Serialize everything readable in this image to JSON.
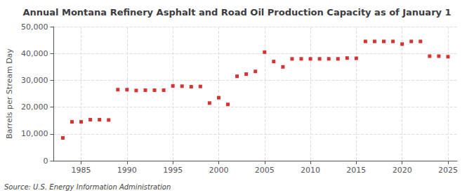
{
  "chart_data": {
    "type": "scatter",
    "title": "Annual Montana Refinery Asphalt and Road Oil Production Capacity as of January 1",
    "ylabel": "Barrels per Stream Day",
    "source": "Source: U.S. Energy Information Administration",
    "color": "#cc0000",
    "marker": "square",
    "x": [
      1983,
      1984,
      1985,
      1986,
      1987,
      1988,
      1989,
      1990,
      1991,
      1992,
      1993,
      1994,
      1995,
      1996,
      1997,
      1998,
      1999,
      2000,
      2001,
      2002,
      2003,
      2004,
      2005,
      2006,
      2007,
      2008,
      2009,
      2010,
      2011,
      2012,
      2013,
      2014,
      2015,
      2016,
      2017,
      2018,
      2019,
      2020,
      2021,
      2022,
      2023,
      2024,
      2025
    ],
    "values": [
      8500,
      14500,
      14500,
      15300,
      15300,
      15200,
      26500,
      26500,
      26200,
      26300,
      26300,
      26300,
      27900,
      27800,
      27600,
      27700,
      21500,
      23500,
      21000,
      31500,
      32300,
      33300,
      40500,
      37000,
      35000,
      38000,
      38000,
      38000,
      38000,
      38000,
      38000,
      38300,
      38200,
      44500,
      44500,
      44500,
      44500,
      43500,
      44500,
      44500,
      39000,
      39000,
      38800
    ],
    "xlim": [
      1982,
      2026
    ],
    "xticks": [
      1985,
      1990,
      1995,
      2000,
      2005,
      2010,
      2015,
      2020,
      2025
    ],
    "ylim": [
      0,
      50000
    ],
    "yticks": [
      0,
      {
        "value": 10000,
        "label": "10,000"
      },
      {
        "value": 20000,
        "label": "20,000"
      },
      {
        "value": 30000,
        "label": "30,000"
      },
      {
        "value": 40000,
        "label": "40,000"
      },
      {
        "value": 50000,
        "label": "50,000"
      }
    ],
    "grid": true
  }
}
